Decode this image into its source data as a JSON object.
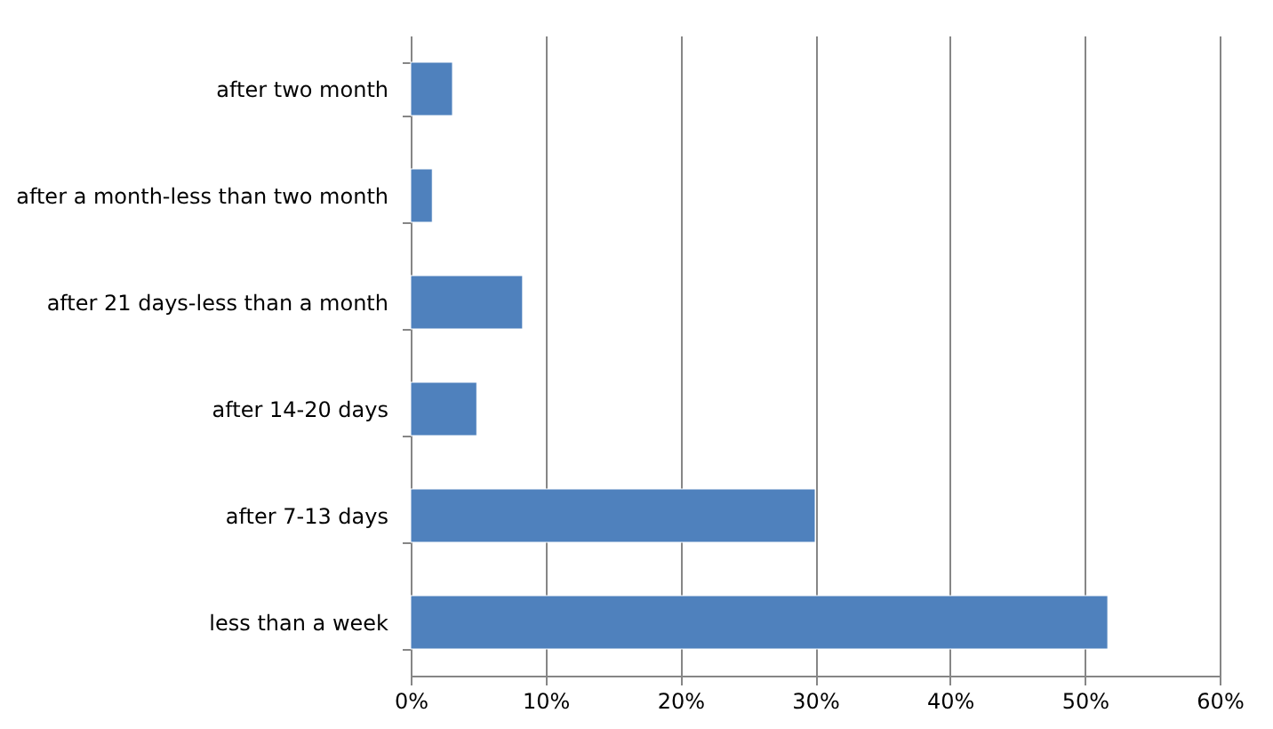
{
  "chart_data": {
    "type": "bar",
    "orientation": "horizontal",
    "categories": [
      "after two month",
      "after a month-less than two month",
      "after 21 days-less than a month",
      "after 14-20 days",
      "after 7-13 days",
      "less than a week"
    ],
    "values": [
      3.1,
      1.6,
      8.3,
      4.9,
      30,
      51.7
    ],
    "color": "#4f81bd",
    "xlim": [
      0,
      60
    ],
    "xticks": [
      {
        "value": 0,
        "label": "0%"
      },
      {
        "value": 10,
        "label": "10%"
      },
      {
        "value": 20,
        "label": "20%"
      },
      {
        "value": 30,
        "label": "30%"
      },
      {
        "value": 40,
        "label": "40%"
      },
      {
        "value": 50,
        "label": "50%"
      },
      {
        "value": 60,
        "label": "60%"
      }
    ],
    "grid": "x"
  }
}
